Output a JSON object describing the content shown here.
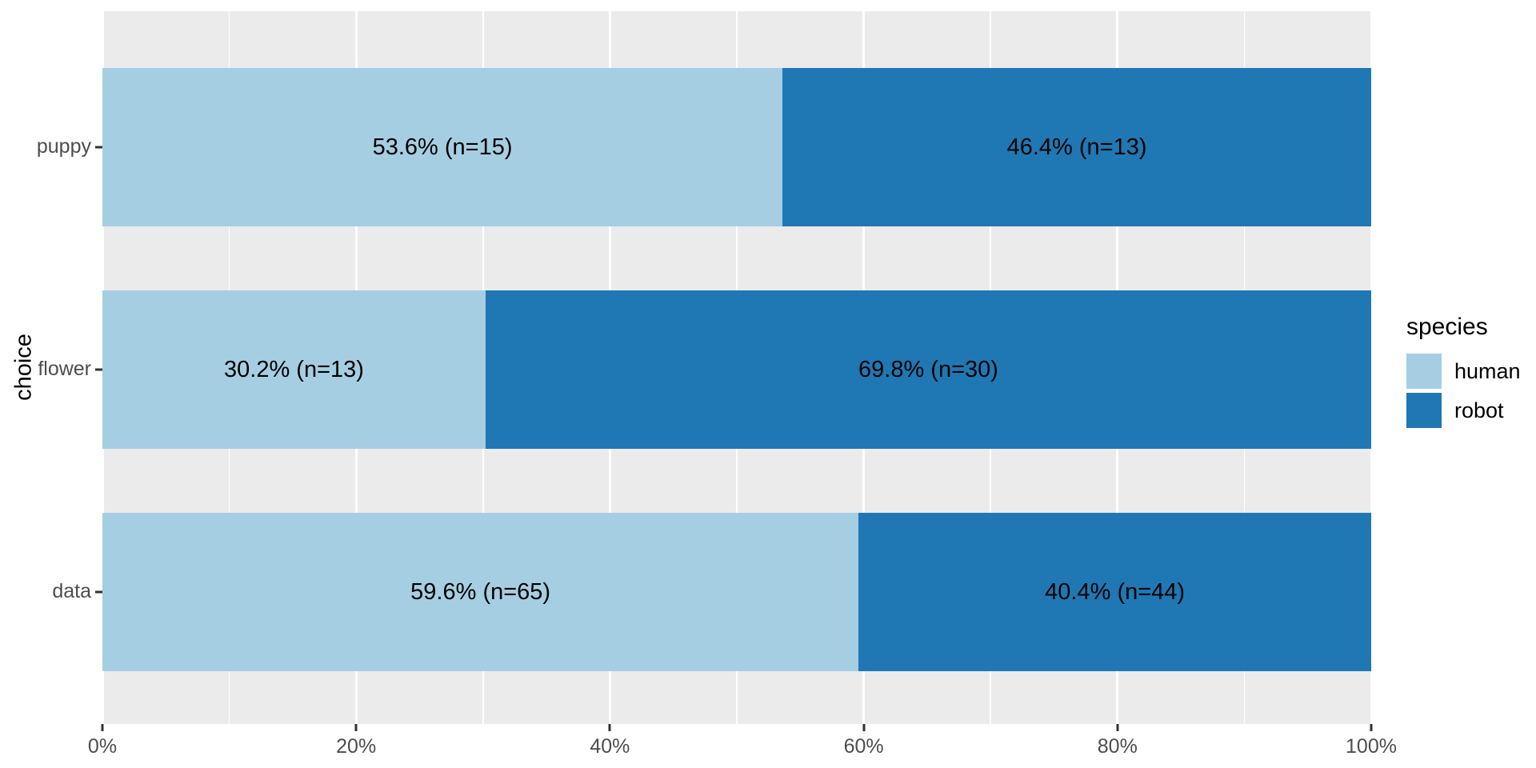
{
  "chart_data": {
    "type": "bar",
    "orientation": "horizontal",
    "stacked": true,
    "units": "percent",
    "title": "",
    "xlabel": "",
    "ylabel": "choice",
    "categories": [
      "puppy",
      "flower",
      "data"
    ],
    "series": [
      {
        "name": "human",
        "color": "#A6CEE3",
        "percents": [
          53.6,
          30.2,
          59.6
        ],
        "counts": [
          15,
          13,
          65
        ],
        "labels": [
          "53.6% (n=15)",
          "30.2% (n=13)",
          "59.6% (n=65)"
        ]
      },
      {
        "name": "robot",
        "color": "#1F78B4",
        "percents": [
          46.4,
          69.8,
          40.4
        ],
        "counts": [
          13,
          30,
          44
        ],
        "labels": [
          "46.4% (n=13)",
          "69.8% (n=30)",
          "40.4% (n=44)"
        ]
      }
    ],
    "xlim": [
      0,
      100
    ],
    "x_major_ticks": [
      0,
      20,
      40,
      60,
      80,
      100
    ],
    "x_tick_labels": [
      "0%",
      "20%",
      "40%",
      "60%",
      "80%",
      "100%"
    ],
    "x_minor_ticks": [
      10,
      30,
      50,
      70,
      90
    ],
    "grid": true,
    "legend": {
      "title": "species",
      "position": "right",
      "entries": [
        {
          "label": "human",
          "color": "#A6CEE3"
        },
        {
          "label": "robot",
          "color": "#1F78B4"
        }
      ]
    },
    "colors": {
      "panel_background": "#EBEBEB",
      "gridline": "#FFFFFF",
      "axis_text": "#4D4D4D",
      "tick_mark": "#333333",
      "bar_label_text": "#000000"
    }
  }
}
